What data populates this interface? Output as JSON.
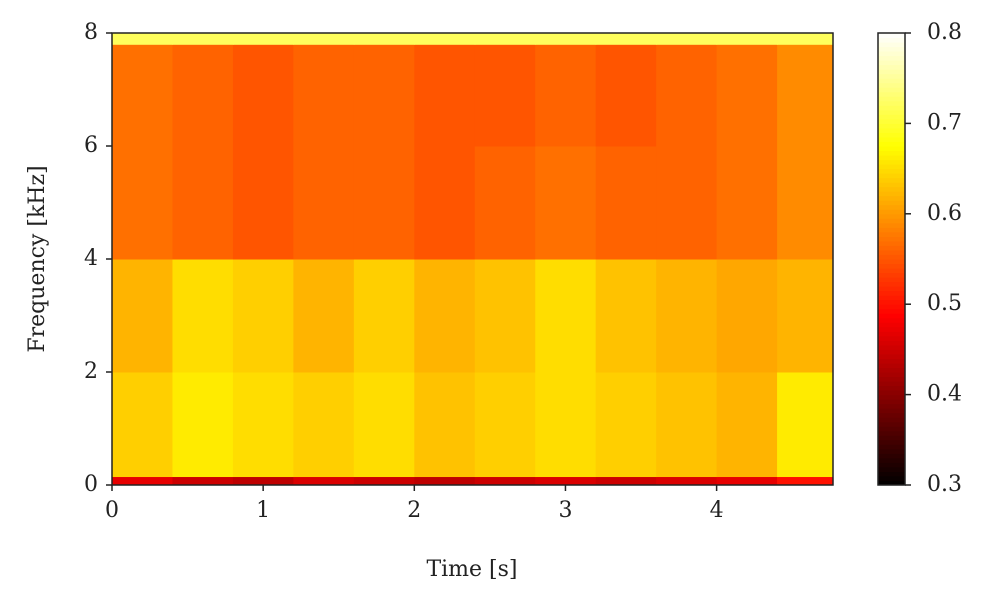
{
  "chart_data": {
    "type": "heatmap",
    "xlabel": "Time [s]",
    "ylabel": "Frequency [kHz]",
    "x": [
      0,
      0.4,
      0.8,
      1.2,
      1.6,
      2.0,
      2.4,
      2.8,
      3.2,
      3.6,
      4.0,
      4.4,
      4.77
    ],
    "y": [
      0,
      0.15,
      2,
      4,
      6,
      7.8,
      8
    ],
    "z": [
      [
        0.47,
        0.45,
        0.44,
        0.46,
        0.45,
        0.44,
        0.45,
        0.46,
        0.45,
        0.46,
        0.47,
        0.5
      ],
      [
        0.64,
        0.66,
        0.65,
        0.64,
        0.65,
        0.63,
        0.64,
        0.65,
        0.64,
        0.63,
        0.62,
        0.66
      ],
      [
        0.62,
        0.65,
        0.64,
        0.62,
        0.64,
        0.62,
        0.63,
        0.65,
        0.63,
        0.62,
        0.61,
        0.62
      ],
      [
        0.57,
        0.56,
        0.55,
        0.56,
        0.56,
        0.55,
        0.56,
        0.57,
        0.56,
        0.56,
        0.57,
        0.59
      ],
      [
        0.57,
        0.56,
        0.55,
        0.56,
        0.56,
        0.55,
        0.55,
        0.56,
        0.55,
        0.56,
        0.57,
        0.59
      ],
      [
        0.72,
        0.72,
        0.72,
        0.72,
        0.72,
        0.72,
        0.72,
        0.72,
        0.72,
        0.72,
        0.72,
        0.72
      ]
    ],
    "colormap": "hot",
    "xlim": [
      0,
      4.77
    ],
    "xticks": [
      0,
      1,
      2,
      3,
      4
    ],
    "ylim": [
      0,
      8
    ],
    "yticks": [
      0,
      2,
      4,
      6,
      8
    ],
    "zlim": [
      0.3,
      0.8
    ],
    "zticks": [
      0.3,
      0.4,
      0.5,
      0.6,
      0.7,
      0.8
    ]
  }
}
